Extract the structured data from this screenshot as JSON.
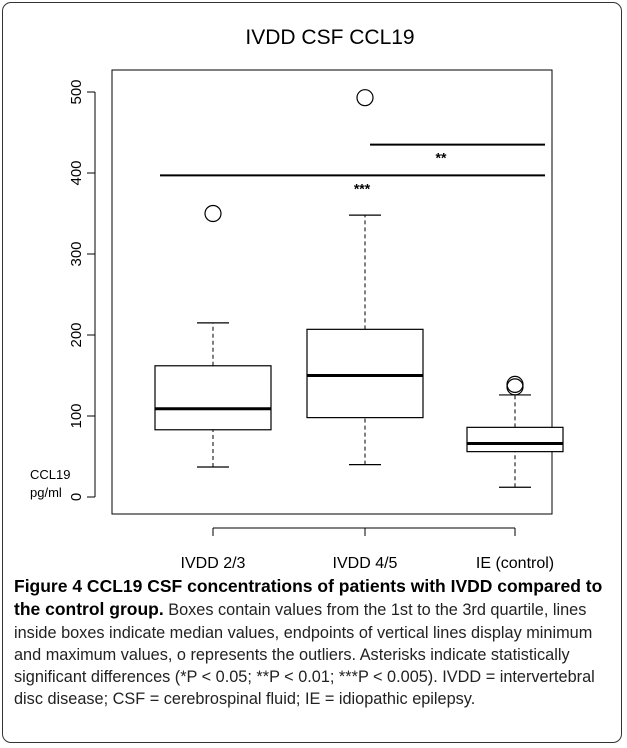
{
  "chart_data": {
    "type": "box",
    "title": "IVDD CSF CCL19",
    "xlabel": "",
    "ylabel": "CCL19\npg/ml",
    "ylabel_lines": [
      "CCL19",
      "pg/ml"
    ],
    "ylim": [
      0,
      500
    ],
    "yticks": [
      "0",
      "100",
      "200",
      "300",
      "400",
      "500"
    ],
    "categories": [
      "IVDD 2/3",
      "IVDD 4/5",
      "IE (control)"
    ],
    "boxes": [
      {
        "name": "IVDD 2/3",
        "min": 37,
        "q1": 83,
        "median": 109,
        "q3": 162,
        "max": 215,
        "outliers": [
          350
        ]
      },
      {
        "name": "IVDD 4/5",
        "min": 40,
        "q1": 98,
        "median": 150,
        "q3": 207,
        "max": 348,
        "outliers": [
          493
        ]
      },
      {
        "name": "IE (control)",
        "min": 12,
        "q1": 56,
        "median": 66,
        "q3": 86,
        "max": 126,
        "outliers": [
          136,
          139
        ]
      }
    ],
    "significance": [
      {
        "from": 0,
        "to": 2,
        "y": 397,
        "label": "***"
      },
      {
        "from": 1,
        "to": 2,
        "y": 435,
        "label": "**"
      }
    ],
    "grid": false,
    "legend": "none"
  },
  "caption": {
    "bold": "Figure 4 CCL19 CSF concentrations of patients with IVDD compared to the control group.",
    "text": " Boxes contain values from the 1st to the 3rd quartile, lines inside boxes indicate median values, endpoints of vertical lines display minimum and maximum values, o represents the outliers. Asterisks indicate statistically significant differences (*P < 0.05; **P < 0.01; ***P < 0.005). IVDD = intervertebral disc disease; CSF = cerebrospinal fluid; IE = idiopathic epilepsy."
  }
}
